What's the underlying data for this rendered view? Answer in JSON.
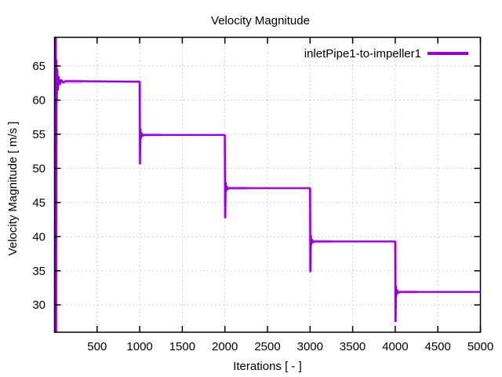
{
  "colors": {
    "background": "#ffffff",
    "axis": "#000000",
    "grid": "#a8a8a8",
    "line": "#9400d3",
    "line_halo": "#d9a0ef"
  },
  "chart_data": {
    "type": "line",
    "title": "Velocity Magnitude",
    "xlabel": "Iterations [ - ]",
    "ylabel": "Velocity Magnitude [ m/s ]",
    "xlim": [
      0,
      5000
    ],
    "ylim": [
      26.0,
      69.2
    ],
    "xticks": [
      500,
      1000,
      1500,
      2000,
      2500,
      3000,
      3500,
      4000,
      4500,
      5000
    ],
    "yticks": [
      30,
      35,
      40,
      45,
      50,
      55,
      60,
      65
    ],
    "grid": true,
    "legend": {
      "label": "inletPipe1-to-impeller1",
      "position": "top-right-inside"
    },
    "series": [
      {
        "name": "inletPipe1-to-impeller1",
        "color": "#9400d3",
        "initial_transient": {
          "x_range": [
            0,
            130
          ],
          "y_min": 26.0,
          "y_max": 69.2,
          "settle_value": 62.7
        },
        "steps": [
          {
            "x_start": 0,
            "x_end": 1000,
            "value": 62.7,
            "undershoot_at_start": null
          },
          {
            "x_start": 1000,
            "x_end": 2000,
            "value": 54.9,
            "undershoot_at_start": 50.6
          },
          {
            "x_start": 2000,
            "x_end": 3000,
            "value": 47.1,
            "undershoot_at_start": 42.7
          },
          {
            "x_start": 3000,
            "x_end": 4000,
            "value": 39.3,
            "undershoot_at_start": 34.8
          },
          {
            "x_start": 4000,
            "x_end": 5000,
            "value": 31.9,
            "undershoot_at_start": 27.5
          }
        ]
      }
    ]
  }
}
